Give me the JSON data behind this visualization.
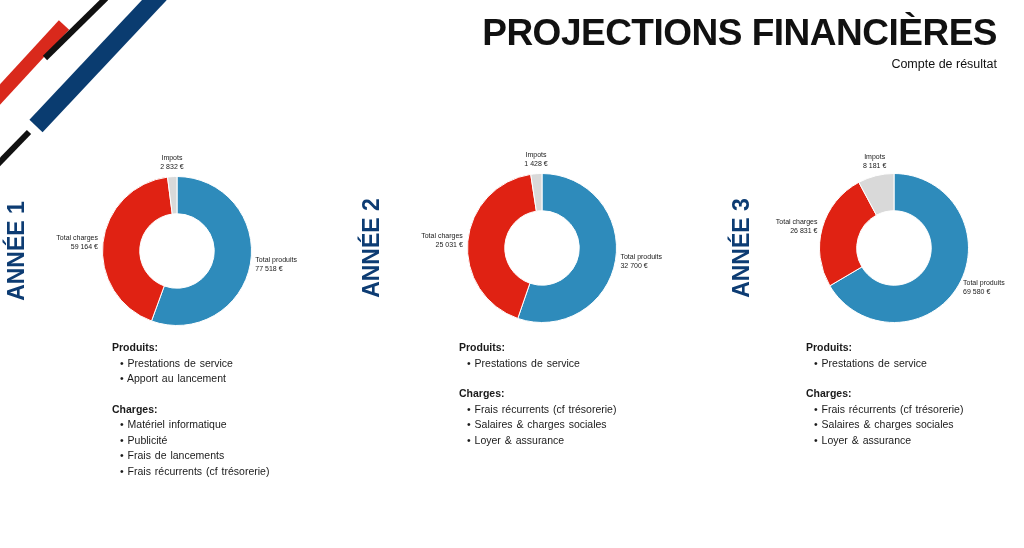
{
  "chart_data": [
    {
      "type": "other",
      "title": "PROJECTIONS FINANCIÈRES",
      "subtitle": "Compte de résultat"
    },
    {
      "type": "donut",
      "title": "ANNÉE 1",
      "categories": [
        "Total produits",
        "Total charges",
        "Impots"
      ],
      "values": [
        77518,
        59164,
        2832
      ],
      "colors": [
        "#2e8bbb",
        "#e02213",
        "#d9d9d9"
      ],
      "value_labels": [
        "77 518 €",
        "59 164 €",
        "2 832 €"
      ],
      "annotations": [
        "Produits:\n• Prestations de service\n• Apport au lancement",
        "Charges:\n• Matériel informatique\n• Publicité\n• Frais de lancements\n• Frais récurrents (cf trésorerie)"
      ]
    },
    {
      "type": "donut",
      "title": "ANNÉE 2",
      "categories": [
        "Total produits",
        "Total charges",
        "Impots"
      ],
      "values": [
        32700,
        25031,
        1428
      ],
      "colors": [
        "#2e8bbb",
        "#e02213",
        "#d9d9d9"
      ],
      "value_labels": [
        "32 700 €",
        "25 031 €",
        "1 428 €"
      ],
      "annotations": [
        "Produits:\n• Prestations de service",
        "Charges:\n• Frais récurrents (cf trésorerie)\n• Salaires & charges sociales\n• Loyer & assurance"
      ]
    },
    {
      "type": "donut",
      "title": "ANNÉE 3",
      "categories": [
        "Total produits",
        "Total charges",
        "Impots"
      ],
      "values": [
        69580,
        26831,
        8181
      ],
      "colors": [
        "#2e8bbb",
        "#e02213",
        "#d9d9d9"
      ],
      "value_labels": [
        "69 580 €",
        "26 831 €",
        "8 181 €"
      ],
      "annotations": [
        "Produits:\n• Prestations de service",
        "Charges:\n• Frais récurrents (cf trésorerie)\n• Salaires & charges sociales\n• Loyer & assurance"
      ]
    }
  ]
}
